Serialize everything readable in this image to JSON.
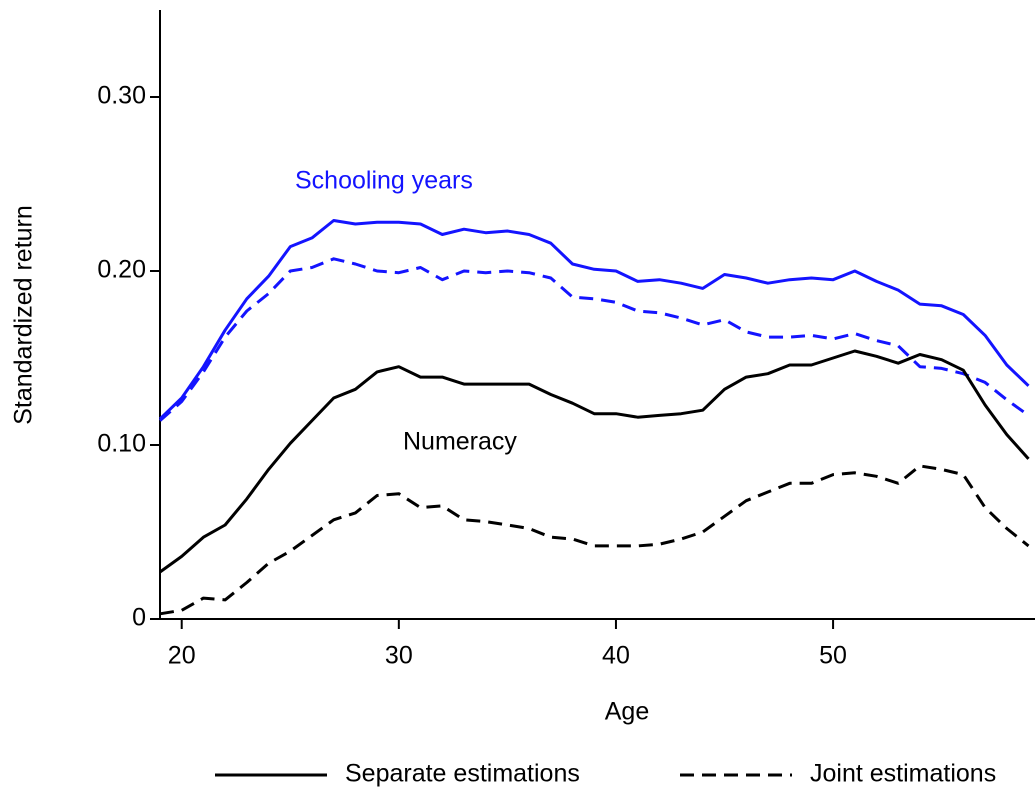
{
  "chart_data": {
    "type": "line",
    "xlabel": "Age",
    "ylabel": "Standardized return",
    "x": [
      19,
      20,
      21,
      22,
      23,
      24,
      25,
      26,
      27,
      28,
      29,
      30,
      31,
      32,
      33,
      34,
      35,
      36,
      37,
      38,
      39,
      40,
      41,
      42,
      43,
      44,
      45,
      46,
      47,
      48,
      49,
      50,
      51,
      52,
      53,
      54,
      55,
      56,
      57,
      58,
      59
    ],
    "xlim": [
      19,
      59.3
    ],
    "xticks": [
      20,
      30,
      40,
      50
    ],
    "ylim": [
      0,
      0.35
    ],
    "yticks": [
      0,
      {
        "value": 0.1,
        "label": "0.10"
      },
      {
        "value": 0.2,
        "label": "0.20"
      },
      {
        "value": 0.3,
        "label": "0.30"
      }
    ],
    "annotations": [
      {
        "text": "Schooling years",
        "color": "#1414ff"
      },
      {
        "text": "Numeracy",
        "color": "#000000"
      }
    ],
    "legend": [
      {
        "label": "Separate estimations",
        "style": "solid"
      },
      {
        "label": "Joint estimations",
        "style": "dashed"
      }
    ],
    "series": [
      {
        "color": "#1414ff",
        "style": "solid",
        "values": [
          0.115,
          0.127,
          0.145,
          0.166,
          0.184,
          0.197,
          0.214,
          0.219,
          0.229,
          0.227,
          0.228,
          0.228,
          0.227,
          0.221,
          0.224,
          0.222,
          0.223,
          0.221,
          0.216,
          0.204,
          0.201,
          0.2,
          0.194,
          0.195,
          0.193,
          0.19,
          0.198,
          0.196,
          0.193,
          0.195,
          0.196,
          0.195,
          0.2,
          0.194,
          0.189,
          0.181,
          0.18,
          0.175,
          0.163,
          0.146,
          0.134
        ]
      },
      {
        "color": "#1414ff",
        "style": "dashed",
        "values": [
          0.114,
          0.125,
          0.142,
          0.162,
          0.177,
          0.187,
          0.2,
          0.202,
          0.207,
          0.204,
          0.2,
          0.199,
          0.202,
          0.195,
          0.2,
          0.199,
          0.2,
          0.199,
          0.196,
          0.185,
          0.184,
          0.182,
          0.177,
          0.176,
          0.173,
          0.169,
          0.172,
          0.165,
          0.162,
          0.162,
          0.163,
          0.161,
          0.164,
          0.16,
          0.157,
          0.145,
          0.144,
          0.141,
          0.136,
          0.126,
          0.117
        ]
      },
      {
        "color": "#000000",
        "style": "solid",
        "values": [
          0.027,
          0.036,
          0.047,
          0.054,
          0.069,
          0.086,
          0.101,
          0.114,
          0.127,
          0.132,
          0.142,
          0.145,
          0.139,
          0.139,
          0.135,
          0.135,
          0.135,
          0.135,
          0.129,
          0.124,
          0.118,
          0.118,
          0.116,
          0.117,
          0.118,
          0.12,
          0.132,
          0.139,
          0.141,
          0.146,
          0.146,
          0.15,
          0.154,
          0.151,
          0.147,
          0.152,
          0.149,
          0.143,
          0.123,
          0.106,
          0.092
        ]
      },
      {
        "color": "#000000",
        "style": "dashed",
        "values": [
          0.003,
          0.005,
          0.012,
          0.011,
          0.021,
          0.032,
          0.039,
          0.048,
          0.057,
          0.061,
          0.071,
          0.072,
          0.064,
          0.065,
          0.057,
          0.056,
          0.054,
          0.052,
          0.047,
          0.046,
          0.042,
          0.042,
          0.042,
          0.043,
          0.046,
          0.05,
          0.059,
          0.068,
          0.073,
          0.078,
          0.078,
          0.083,
          0.084,
          0.082,
          0.078,
          0.088,
          0.086,
          0.083,
          0.064,
          0.052,
          0.042
        ]
      }
    ]
  }
}
